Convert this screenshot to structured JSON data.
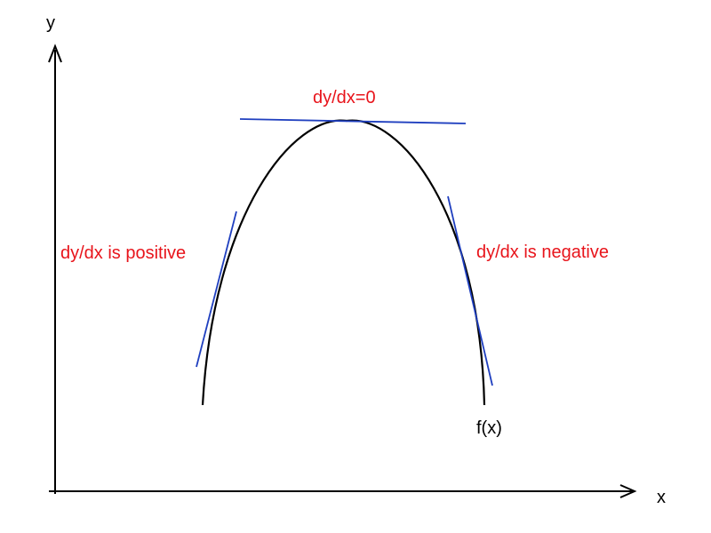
{
  "axes": {
    "x_label": "x",
    "y_label": "y"
  },
  "curve": {
    "label": "f(x)"
  },
  "annotations": {
    "zero_slope": "dy/dx=0",
    "positive_slope": "dy/dx is positive",
    "negative_slope": "dy/dx is negative"
  },
  "colors": {
    "axis": "#000000",
    "curve": "#000000",
    "tangent": "#1f3fbf",
    "annotation": "#e8141b"
  }
}
